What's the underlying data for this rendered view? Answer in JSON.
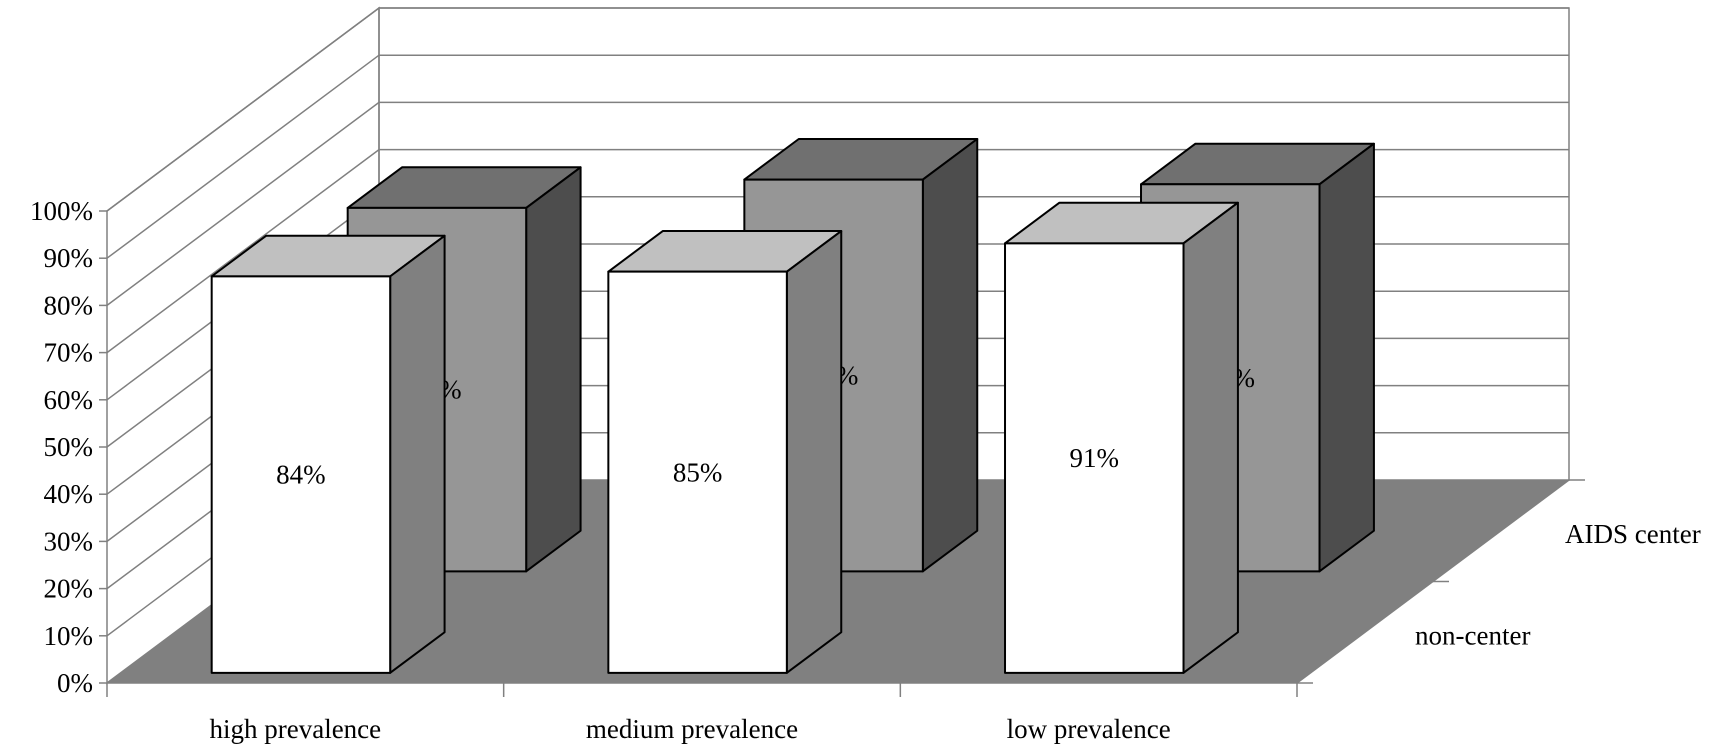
{
  "chart_data": {
    "type": "bar",
    "style": "3d-clustered-depth",
    "title": "",
    "xlabel": "",
    "ylabel": "",
    "ylim": [
      0,
      100
    ],
    "yticks": [
      "0%",
      "10%",
      "20%",
      "30%",
      "40%",
      "50%",
      "60%",
      "70%",
      "80%",
      "90%",
      "100%"
    ],
    "categories": [
      "high prevalence",
      "medium prevalence",
      "low prevalence"
    ],
    "series": [
      {
        "name": "non-center",
        "values": [
          84,
          85,
          91
        ],
        "labels": [
          "84%",
          "85%",
          "91%"
        ],
        "colors": {
          "front": "#ffffff",
          "side": "#808080",
          "top": "#c0c0c0"
        }
      },
      {
        "name": "AIDS center",
        "values": [
          77,
          83,
          82
        ],
        "labels": [
          "77%",
          "83%",
          "82%"
        ],
        "colors": {
          "front": "#969696",
          "side": "#4d4d4d",
          "top": "#707070"
        }
      }
    ],
    "floor_color": "#808080",
    "wall_line_color": "#808080",
    "grid": true
  }
}
